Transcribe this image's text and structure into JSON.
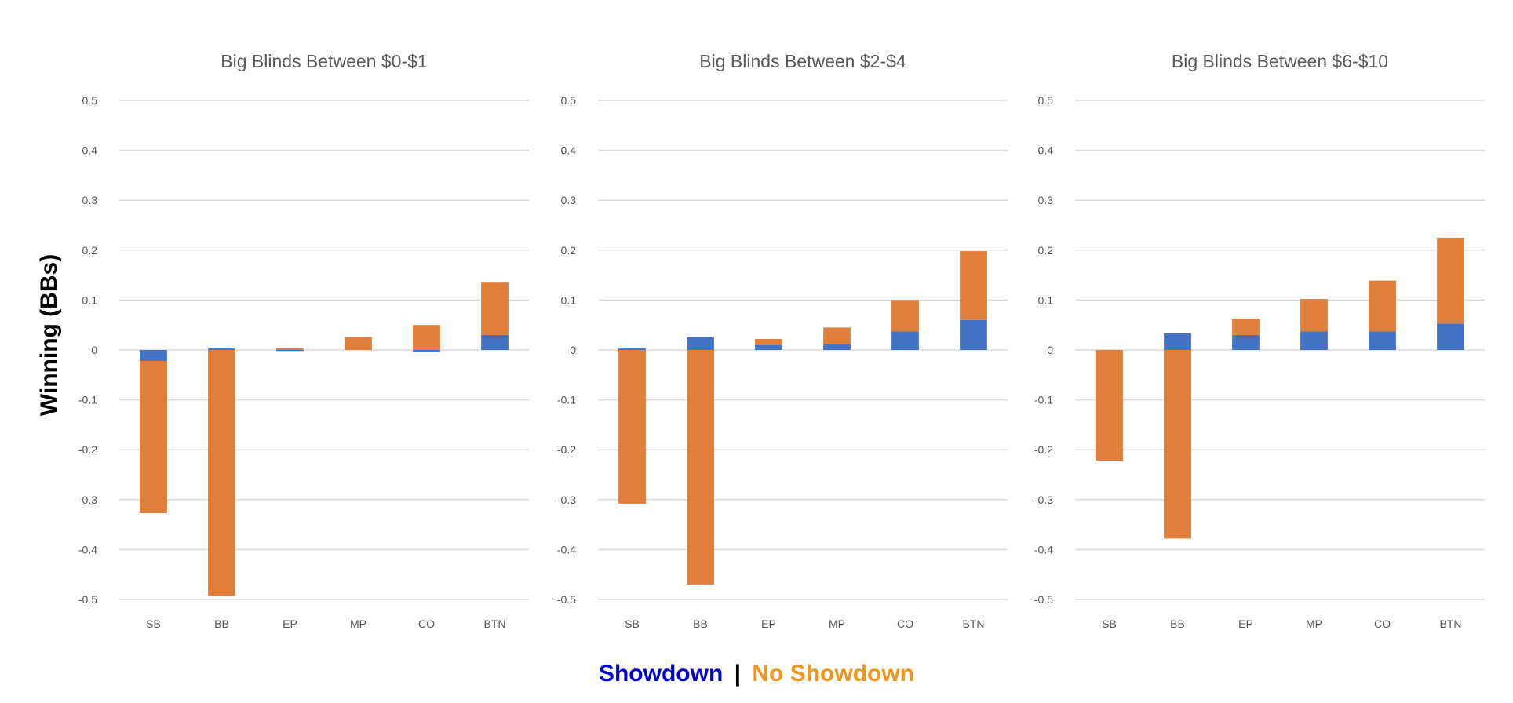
{
  "ylabel": "Winning (BBs)",
  "legend": {
    "showdown_label": "Showdown",
    "separator": "|",
    "no_showdown_label": "No Showdown",
    "showdown_color": "#0000cc",
    "no_showdown_color": "#f0961e",
    "separator_color": "#000000"
  },
  "chart_data": [
    {
      "type": "bar",
      "stacked": true,
      "title": "Big Blinds Between $0-$1",
      "categories": [
        "SB",
        "BB",
        "EP",
        "MP",
        "CO",
        "BTN"
      ],
      "ylim": [
        -0.5,
        0.5
      ],
      "yticks": [
        0.5,
        0.4,
        0.3,
        0.2,
        0.1,
        0,
        -0.1,
        -0.2,
        -0.3,
        -0.4,
        -0.5
      ],
      "grid": true,
      "series": [
        {
          "name": "Showdown",
          "color": "#4472c4",
          "values": [
            -0.022,
            0.003,
            -0.002,
            0.0,
            -0.004,
            0.03
          ]
        },
        {
          "name": "No Showdown",
          "color": "#e07e3c",
          "values": [
            -0.305,
            -0.493,
            0.004,
            0.026,
            0.05,
            0.105
          ]
        }
      ]
    },
    {
      "type": "bar",
      "stacked": true,
      "title": "Big Blinds Between $2-$4",
      "categories": [
        "SB",
        "BB",
        "EP",
        "MP",
        "CO",
        "BTN"
      ],
      "ylim": [
        -0.5,
        0.5
      ],
      "yticks": [
        0.5,
        0.4,
        0.3,
        0.2,
        0.1,
        0,
        -0.1,
        -0.2,
        -0.3,
        -0.4,
        -0.5
      ],
      "grid": true,
      "series": [
        {
          "name": "Showdown",
          "color": "#4472c4",
          "values": [
            0.003,
            0.026,
            0.01,
            0.012,
            0.037,
            0.06
          ]
        },
        {
          "name": "No Showdown",
          "color": "#e07e3c",
          "values": [
            -0.308,
            -0.47,
            0.012,
            0.033,
            0.063,
            0.138
          ]
        }
      ]
    },
    {
      "type": "bar",
      "stacked": true,
      "title": "Big Blinds Between $6-$10",
      "categories": [
        "SB",
        "BB",
        "EP",
        "MP",
        "CO",
        "BTN"
      ],
      "ylim": [
        -0.5,
        0.5
      ],
      "yticks": [
        0.5,
        0.4,
        0.3,
        0.2,
        0.1,
        0,
        -0.1,
        -0.2,
        -0.3,
        -0.4,
        -0.5
      ],
      "grid": true,
      "series": [
        {
          "name": "Showdown",
          "color": "#4472c4",
          "values": [
            0.0,
            0.033,
            0.03,
            0.037,
            0.037,
            0.053
          ]
        },
        {
          "name": "No Showdown",
          "color": "#e07e3c",
          "values": [
            -0.222,
            -0.378,
            0.033,
            0.065,
            0.102,
            0.172
          ]
        }
      ]
    }
  ]
}
